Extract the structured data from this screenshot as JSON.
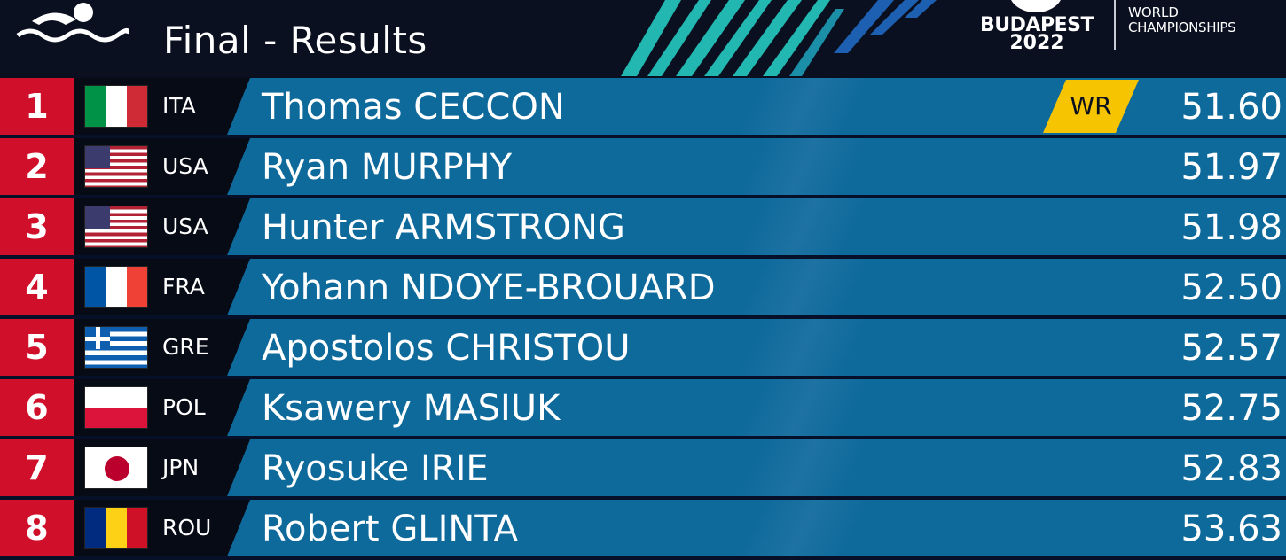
{
  "header": {
    "title": "Final - Results",
    "event_logo": {
      "city": "BUDAPEST",
      "year": "2022"
    },
    "championship": {
      "line1": "WORLD",
      "line2": "CHAMPIONSHIPS"
    }
  },
  "colors": {
    "rank_red": "#d0102a",
    "panel_blue": "#0f6a9c",
    "record_yellow": "#f6c400",
    "header_dark": "#0b1020",
    "stripe_teal": "#22b7b0"
  },
  "results": [
    {
      "rank": "1",
      "flag": "italy-flag",
      "country": "ITA",
      "name": "Thomas CECCON",
      "record": "WR",
      "time": "51.60"
    },
    {
      "rank": "2",
      "flag": "usa-flag",
      "country": "USA",
      "name": "Ryan MURPHY",
      "record": "",
      "time": "51.97"
    },
    {
      "rank": "3",
      "flag": "usa-flag",
      "country": "USA",
      "name": "Hunter ARMSTRONG",
      "record": "",
      "time": "51.98"
    },
    {
      "rank": "4",
      "flag": "france-flag",
      "country": "FRA",
      "name": "Yohann NDOYE-BROUARD",
      "record": "",
      "time": "52.50"
    },
    {
      "rank": "5",
      "flag": "greece-flag",
      "country": "GRE",
      "name": "Apostolos CHRISTOU",
      "record": "",
      "time": "52.57"
    },
    {
      "rank": "6",
      "flag": "poland-flag",
      "country": "POL",
      "name": "Ksawery MASIUK",
      "record": "",
      "time": "52.75"
    },
    {
      "rank": "7",
      "flag": "japan-flag",
      "country": "JPN",
      "name": "Ryosuke IRIE",
      "record": "",
      "time": "52.83"
    },
    {
      "rank": "8",
      "flag": "romania-flag",
      "country": "ROU",
      "name": "Robert GLINTA",
      "record": "",
      "time": "53.63"
    }
  ]
}
